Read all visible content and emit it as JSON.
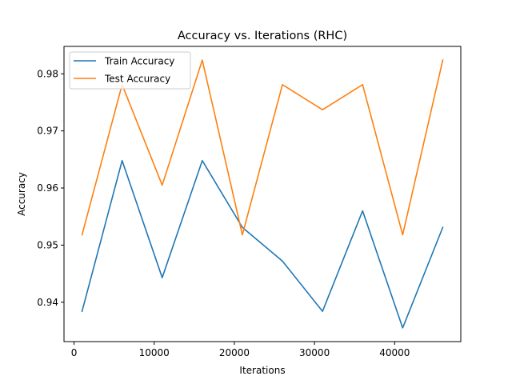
{
  "chart_data": {
    "type": "line",
    "title": "Accuracy vs. Iterations (RHC)",
    "xlabel": "Iterations",
    "ylabel": "Accuracy",
    "x": [
      1000,
      6000,
      11000,
      16000,
      21000,
      26000,
      31000,
      36000,
      41000,
      46000
    ],
    "xlim": [
      -1250,
      48250
    ],
    "ylim": [
      0.9331,
      0.9848
    ],
    "xticks": [
      0,
      10000,
      20000,
      30000,
      40000
    ],
    "xtick_labels": [
      "0",
      "10000",
      "20000",
      "30000",
      "40000"
    ],
    "yticks": [
      0.94,
      0.95,
      0.96,
      0.97,
      0.98
    ],
    "ytick_labels": [
      "0.94",
      "0.95",
      "0.96",
      "0.97",
      "0.98"
    ],
    "grid": false,
    "legend_position": "top-left",
    "series": [
      {
        "name": "Train Accuracy",
        "color": "#1f77b4",
        "values": [
          0.9384,
          0.9648,
          0.9443,
          0.9648,
          0.9531,
          0.9472,
          0.9384,
          0.956,
          0.9355,
          0.9531
        ]
      },
      {
        "name": "Test Accuracy",
        "color": "#ff7f0e",
        "values": [
          0.9518,
          0.9781,
          0.9605,
          0.9824,
          0.9518,
          0.9781,
          0.9737,
          0.9781,
          0.9518,
          0.9824
        ]
      }
    ]
  }
}
